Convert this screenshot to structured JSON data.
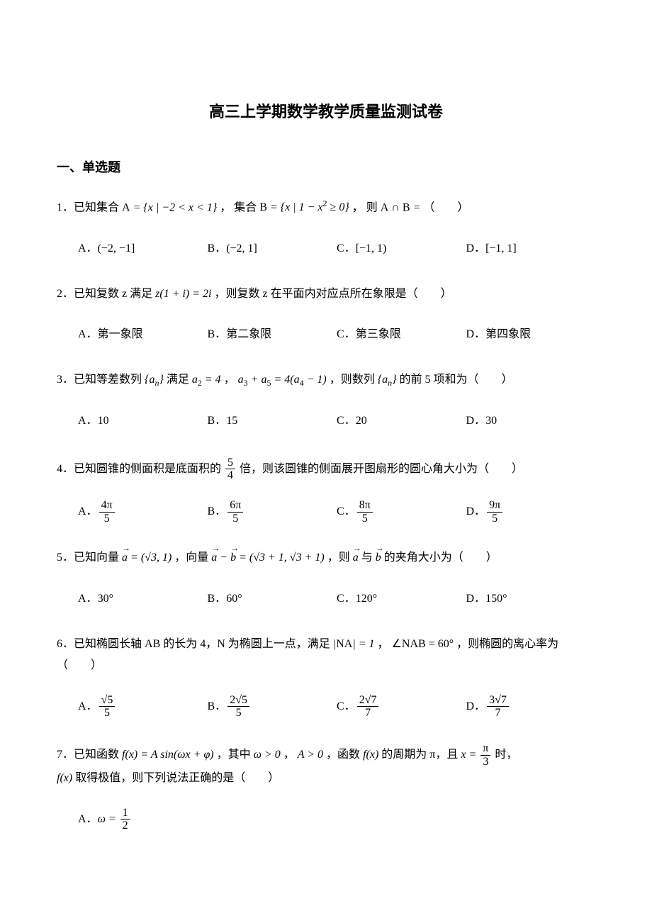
{
  "doc": {
    "title": "高三上学期数学教学质量监测试卷",
    "section_header": "一、单选题",
    "title_fontsize": 22,
    "section_fontsize": 18,
    "body_fontsize": 16,
    "text_color": "#000000",
    "background_color": "#ffffff",
    "font_family_heading": "SimHei",
    "font_family_body": "SimSun",
    "font_family_math": "Times New Roman"
  },
  "questions": [
    {
      "number": "1．",
      "stem_prefix": "已知集合 ",
      "stem_math1": "A = { x | −2 < x < 1 }",
      "stem_mid1": " ， 集合 ",
      "stem_math2": "B = { x | 1 − x² ≥ 0 }",
      "stem_mid2": " ， 则 ",
      "stem_math3": "A ∩ B =",
      "stem_suffix": " （　　）",
      "options_layout": "four-col",
      "options": [
        {
          "label": "A．",
          "text": "(−2, −1]"
        },
        {
          "label": "B．",
          "text": "(−2, 1]"
        },
        {
          "label": "C．",
          "text": "[−1, 1)"
        },
        {
          "label": "D．",
          "text": "[−1, 1]"
        }
      ]
    },
    {
      "number": "2．",
      "stem_prefix": "已知复数 z 满足 ",
      "stem_math1": "z(1 + i) = 2i",
      "stem_suffix": " ，则复数 z 在平面内对应点所在象限是（　　）",
      "options_layout": "four-col",
      "options": [
        {
          "label": "A．",
          "text": "第一象限"
        },
        {
          "label": "B．",
          "text": "第二象限"
        },
        {
          "label": "C．",
          "text": "第三象限"
        },
        {
          "label": "D．",
          "text": "第四象限"
        }
      ]
    },
    {
      "number": "3．",
      "stem_prefix": "已知等差数列 ",
      "stem_math1": "{aₙ}",
      "stem_mid1": " 满足 ",
      "stem_math2": "a₂ = 4",
      "stem_mid2": " ， ",
      "stem_math3": "a₃ + a₅ = 4(a₄ − 1)",
      "stem_mid3": " ，则数列 ",
      "stem_math4": "{aₙ}",
      "stem_suffix": " 的前 5 项和为（　　）",
      "options_layout": "four-col",
      "options": [
        {
          "label": "A．",
          "text": "10"
        },
        {
          "label": "B．",
          "text": "15"
        },
        {
          "label": "C．",
          "text": "20"
        },
        {
          "label": "D．",
          "text": "30"
        }
      ]
    },
    {
      "number": "4．",
      "stem_prefix": "已知圆锥的侧面积是底面积的 ",
      "frac1": {
        "num": "5",
        "den": "4"
      },
      "stem_suffix": " 倍，则该圆锥的侧面展开图扇形的圆心角大小为（　　）",
      "options_layout": "four-col",
      "options": [
        {
          "label": "A．",
          "frac": {
            "num": "4π",
            "den": "5"
          }
        },
        {
          "label": "B．",
          "frac": {
            "num": "6π",
            "den": "5"
          }
        },
        {
          "label": "C．",
          "frac": {
            "num": "8π",
            "den": "5"
          }
        },
        {
          "label": "D．",
          "frac": {
            "num": "9π",
            "den": "5"
          }
        }
      ]
    },
    {
      "number": "5．",
      "stem_prefix": "已知向量 ",
      "stem_math1": "a⃗ = (√3, 1)",
      "stem_mid1": " ，向量 ",
      "stem_math2": "a⃗ − b⃗ = (√3 + 1, √3 + 1)",
      "stem_mid2": " ，则 ",
      "stem_math3": "a⃗",
      "stem_mid3": " 与 ",
      "stem_math4": "b⃗",
      "stem_suffix": " 的夹角大小为（　　）",
      "options_layout": "four-col",
      "options": [
        {
          "label": "A．",
          "text": "30°"
        },
        {
          "label": "B．",
          "text": "60°"
        },
        {
          "label": "C．",
          "text": "120°"
        },
        {
          "label": "D．",
          "text": "150°"
        }
      ]
    },
    {
      "number": "6．",
      "stem_prefix": "已知椭圆长轴 AB 的长为 4，N 为椭圆上一点，满足 ",
      "stem_math1": "|NA| = 1",
      "stem_mid1": " ， ",
      "stem_math2": "∠NAB = 60°",
      "stem_suffix": " ，则椭圆的离心率为（　　）",
      "options_layout": "four-col",
      "options": [
        {
          "label": "A．",
          "frac": {
            "num": "√5",
            "den": "5"
          }
        },
        {
          "label": "B．",
          "frac": {
            "num": "2√5",
            "den": "5"
          }
        },
        {
          "label": "C．",
          "frac": {
            "num": "2√7",
            "den": "7"
          }
        },
        {
          "label": "D．",
          "frac": {
            "num": "3√7",
            "den": "7"
          }
        }
      ]
    },
    {
      "number": "7．",
      "stem_prefix": "已知函数 ",
      "stem_math1": "f(x) = A sin(ωx + φ)",
      "stem_mid1": " ，其中 ",
      "stem_math2": "ω > 0",
      "stem_mid2": " ， ",
      "stem_math3": "A > 0",
      "stem_mid3": " ，函数 ",
      "stem_math4": "f(x)",
      "stem_mid4": " 的周期为 π，且 ",
      "stem_math5_prefix": "x = ",
      "frac5": {
        "num": "π",
        "den": "3"
      },
      "stem_mid5": " 时，",
      "stem_line2_math": "f(x)",
      "stem_line2_suffix": " 取得极值，则下列说法正确的是（　　）",
      "options_layout": "one-col",
      "options": [
        {
          "label": "A．",
          "math_prefix": "ω = ",
          "frac": {
            "num": "1",
            "den": "2"
          }
        }
      ]
    }
  ]
}
